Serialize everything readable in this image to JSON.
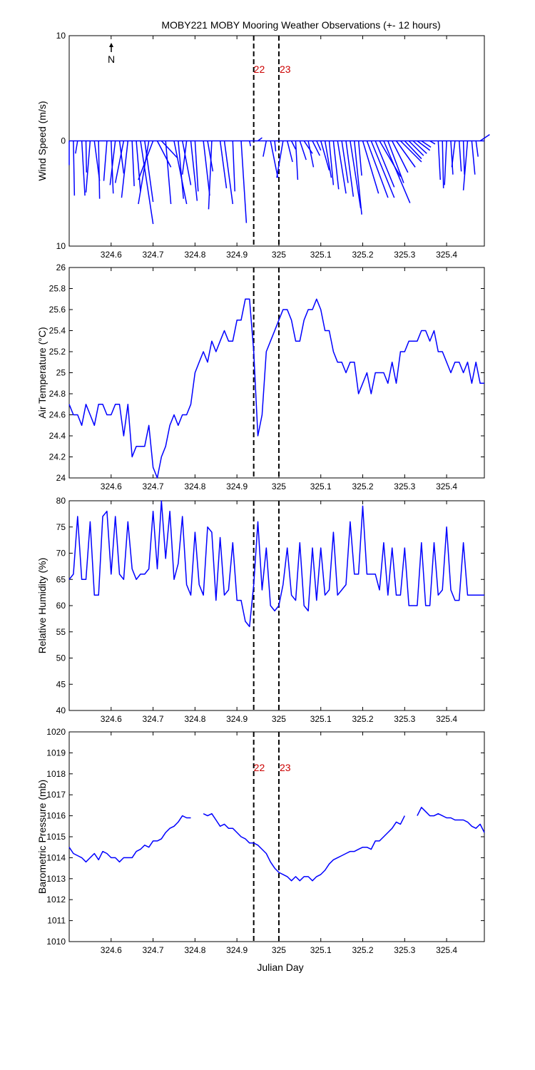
{
  "title": "MOBY221 MOBY Mooring Weather Observations (+- 12 hours)",
  "xlabel": "Julian Day",
  "x_ticks": [
    324.6,
    324.7,
    324.8,
    324.9,
    325,
    325.1,
    325.2,
    325.3,
    325.4
  ],
  "x_tick_labels": [
    "324.6",
    "324.7",
    "324.8",
    "324.9",
    "325",
    "325.1",
    "325.2",
    "325.3",
    "325.4"
  ],
  "xlim": [
    324.5,
    325.49
  ],
  "markers": [
    {
      "x": 324.94,
      "label": "22"
    },
    {
      "x": 325.0,
      "label": "23"
    }
  ],
  "colors": {
    "series": "#0000ff",
    "marker_label": "#cc0000",
    "axis": "#000000"
  },
  "north_label": "N",
  "chart_data": [
    {
      "type": "quiver",
      "ylabel": "Wind Speed (m/s)",
      "ylim": [
        -10,
        10
      ],
      "y_ticks": [
        10,
        0,
        -10
      ],
      "y_tick_labels": [
        "10",
        "0",
        "10"
      ],
      "show_x_ticks": true,
      "marker_labels_at": 6.8,
      "vectors": [
        [
          324.5,
          0,
          -2.3
        ],
        [
          324.51,
          0.1,
          -5.2
        ],
        [
          324.52,
          -0.2,
          -1.2
        ],
        [
          324.53,
          0.3,
          -5.2
        ],
        [
          324.54,
          0.05,
          -3.0
        ],
        [
          324.55,
          -0.4,
          -4.9
        ],
        [
          324.56,
          0.5,
          -3.8
        ],
        [
          324.57,
          0.1,
          -5.5
        ],
        [
          324.59,
          -0.3,
          -3.8
        ],
        [
          324.6,
          0.2,
          -5.0
        ],
        [
          324.61,
          -0.5,
          -4.2
        ],
        [
          324.62,
          0.4,
          -3.1
        ],
        [
          324.63,
          -0.8,
          -4.0
        ],
        [
          324.64,
          -0.6,
          -5.4
        ],
        [
          324.65,
          0.2,
          -4.3
        ],
        [
          324.66,
          0.4,
          -4.8
        ],
        [
          324.67,
          1.2,
          -7.9
        ],
        [
          324.68,
          0.8,
          -5.8
        ],
        [
          324.69,
          -1.0,
          -6.0
        ],
        [
          324.7,
          -1.4,
          -3.7
        ],
        [
          324.71,
          1.3,
          -2.5
        ],
        [
          324.72,
          1.5,
          -1.6
        ],
        [
          324.73,
          0.5,
          -6.0
        ],
        [
          324.75,
          1.2,
          -6.0
        ],
        [
          324.76,
          0.5,
          -5.5
        ],
        [
          324.77,
          0.8,
          -4.2
        ],
        [
          324.78,
          -0.4,
          -3.2
        ],
        [
          324.79,
          0.6,
          -5.7
        ],
        [
          324.8,
          0.3,
          -4.8
        ],
        [
          324.82,
          0.6,
          -5.2
        ],
        [
          324.83,
          0.5,
          -2.9
        ],
        [
          324.84,
          -0.3,
          -6.5
        ],
        [
          324.86,
          0.6,
          -4.5
        ],
        [
          324.87,
          0.8,
          -6.0
        ],
        [
          324.89,
          0.2,
          -4.8
        ],
        [
          324.91,
          0.5,
          -7.8
        ],
        [
          324.93,
          0.1,
          -0.5
        ],
        [
          324.95,
          0.4,
          0.3
        ],
        [
          324.97,
          -0.3,
          -1.5
        ],
        [
          324.98,
          0.7,
          -3.5
        ],
        [
          324.99,
          0.1,
          -1.0
        ],
        [
          325.01,
          -0.6,
          -3.5
        ],
        [
          325.02,
          0.5,
          -2.0
        ],
        [
          325.03,
          0.4,
          -0.8
        ],
        [
          325.04,
          0.2,
          -3.7
        ],
        [
          325.05,
          0.6,
          -1.8
        ],
        [
          325.06,
          0.8,
          -1.2
        ],
        [
          325.07,
          0.5,
          -2.5
        ],
        [
          325.08,
          0.7,
          -1.4
        ],
        [
          325.09,
          0.4,
          -0.9
        ],
        [
          325.1,
          0.8,
          -2.8
        ],
        [
          325.11,
          0.6,
          -3.5
        ],
        [
          325.12,
          0.4,
          -4.2
        ],
        [
          325.13,
          0.5,
          -4.6
        ],
        [
          325.14,
          0.8,
          -5.0
        ],
        [
          325.15,
          0.6,
          -4.0
        ],
        [
          325.16,
          0.7,
          -5.3
        ],
        [
          325.17,
          1.0,
          -6.4
        ],
        [
          325.18,
          0.7,
          -7.0
        ],
        [
          325.19,
          0.3,
          -3.3
        ],
        [
          325.2,
          1.5,
          -5.0
        ],
        [
          325.21,
          2.0,
          -5.4
        ],
        [
          325.22,
          2.2,
          -5.4
        ],
        [
          325.23,
          1.8,
          -4.4
        ],
        [
          325.24,
          2.0,
          -3.4
        ],
        [
          325.25,
          2.5,
          -5.9
        ],
        [
          325.26,
          1.5,
          -4.0
        ],
        [
          325.27,
          1.5,
          -3.0
        ],
        [
          325.28,
          1.8,
          -2.5
        ],
        [
          325.29,
          2.0,
          -2.0
        ],
        [
          325.3,
          1.6,
          -1.7
        ],
        [
          325.31,
          1.4,
          -1.4
        ],
        [
          325.32,
          1.3,
          -1.2
        ],
        [
          325.33,
          1.2,
          -0.9
        ],
        [
          325.34,
          0.9,
          -0.6
        ],
        [
          325.36,
          0.5,
          -0.3
        ],
        [
          325.38,
          0.2,
          -3.7
        ],
        [
          325.39,
          0.1,
          -4.5
        ],
        [
          325.4,
          -0.2,
          -4.2
        ],
        [
          325.41,
          0.2,
          -3.2
        ],
        [
          325.42,
          -0.3,
          -2.5
        ],
        [
          325.43,
          0.2,
          -2.9
        ],
        [
          325.44,
          0.1,
          -3.2
        ],
        [
          325.45,
          -0.4,
          -4.7
        ],
        [
          325.46,
          0.3,
          -3.2
        ],
        [
          325.47,
          0.2,
          -1.5
        ],
        [
          325.48,
          0.9,
          0.6
        ]
      ]
    },
    {
      "type": "line",
      "ylabel": "Air Temperature (°C)",
      "ylim": [
        24,
        26
      ],
      "y_ticks": [
        24,
        24.2,
        24.4,
        24.6,
        24.8,
        25,
        25.2,
        25.4,
        25.6,
        25.8,
        26
      ],
      "y_tick_labels": [
        "24",
        "24.2",
        "24.4",
        "24.6",
        "24.8",
        "25",
        "25.2",
        "25.4",
        "25.6",
        "25.8",
        "26"
      ],
      "show_x_ticks": true,
      "x": [
        324.5,
        324.51,
        324.52,
        324.53,
        324.54,
        324.55,
        324.56,
        324.57,
        324.58,
        324.59,
        324.6,
        324.61,
        324.62,
        324.63,
        324.64,
        324.65,
        324.66,
        324.67,
        324.68,
        324.69,
        324.7,
        324.71,
        324.72,
        324.73,
        324.74,
        324.75,
        324.76,
        324.77,
        324.78,
        324.79,
        324.8,
        324.81,
        324.82,
        324.83,
        324.84,
        324.85,
        324.86,
        324.87,
        324.88,
        324.89,
        324.9,
        324.91,
        324.92,
        324.93,
        324.94,
        324.95,
        324.96,
        324.97,
        324.98,
        324.99,
        325.0,
        325.01,
        325.02,
        325.03,
        325.04,
        325.05,
        325.06,
        325.07,
        325.08,
        325.09,
        325.1,
        325.11,
        325.12,
        325.13,
        325.14,
        325.15,
        325.16,
        325.17,
        325.18,
        325.19,
        325.2,
        325.21,
        325.22,
        325.23,
        325.24,
        325.25,
        325.26,
        325.27,
        325.28,
        325.29,
        325.3,
        325.31,
        325.32,
        325.33,
        325.34,
        325.35,
        325.36,
        325.37,
        325.38,
        325.39,
        325.4,
        325.41,
        325.42,
        325.43,
        325.44,
        325.45,
        325.46,
        325.47,
        325.48,
        325.49
      ],
      "y": [
        24.7,
        24.6,
        24.6,
        24.5,
        24.7,
        24.6,
        24.5,
        24.7,
        24.7,
        24.6,
        24.6,
        24.7,
        24.7,
        24.4,
        24.7,
        24.2,
        24.3,
        24.3,
        24.3,
        24.5,
        24.1,
        24.0,
        24.2,
        24.3,
        24.5,
        24.6,
        24.5,
        24.6,
        24.6,
        24.7,
        25.0,
        25.1,
        25.2,
        25.1,
        25.3,
        25.2,
        25.3,
        25.4,
        25.3,
        25.3,
        25.5,
        25.5,
        25.7,
        25.7,
        25.2,
        24.4,
        24.6,
        25.2,
        25.3,
        25.4,
        25.5,
        25.6,
        25.6,
        25.5,
        25.3,
        25.3,
        25.5,
        25.6,
        25.6,
        25.7,
        25.6,
        25.4,
        25.4,
        25.2,
        25.1,
        25.1,
        25.0,
        25.1,
        25.1,
        24.8,
        24.9,
        25.0,
        24.8,
        25.0,
        25.0,
        25.0,
        24.9,
        25.1,
        24.9,
        25.2,
        25.2,
        25.3,
        25.3,
        25.3,
        25.4,
        25.4,
        25.3,
        25.4,
        25.2,
        25.2,
        25.1,
        25.0,
        25.1,
        25.1,
        25.0,
        25.1,
        24.9,
        25.1,
        24.9,
        24.9
      ]
    },
    {
      "type": "line",
      "ylabel": "Relative Humidity (%)",
      "ylim": [
        40,
        80
      ],
      "y_ticks": [
        40,
        45,
        50,
        55,
        60,
        65,
        70,
        75,
        80
      ],
      "y_tick_labels": [
        "40",
        "45",
        "50",
        "55",
        "60",
        "65",
        "70",
        "75",
        "80"
      ],
      "show_x_ticks": true,
      "x": [
        324.5,
        324.51,
        324.52,
        324.53,
        324.54,
        324.55,
        324.56,
        324.57,
        324.58,
        324.59,
        324.6,
        324.61,
        324.62,
        324.63,
        324.64,
        324.65,
        324.66,
        324.67,
        324.68,
        324.69,
        324.7,
        324.71,
        324.72,
        324.73,
        324.74,
        324.75,
        324.76,
        324.77,
        324.78,
        324.79,
        324.8,
        324.81,
        324.82,
        324.83,
        324.84,
        324.85,
        324.86,
        324.87,
        324.88,
        324.89,
        324.9,
        324.91,
        324.92,
        324.93,
        324.94,
        324.95,
        324.96,
        324.97,
        324.98,
        324.99,
        325.0,
        325.01,
        325.02,
        325.03,
        325.04,
        325.05,
        325.06,
        325.07,
        325.08,
        325.09,
        325.1,
        325.11,
        325.12,
        325.13,
        325.14,
        325.15,
        325.16,
        325.17,
        325.18,
        325.19,
        325.2,
        325.21,
        325.22,
        325.23,
        325.24,
        325.25,
        325.26,
        325.27,
        325.28,
        325.29,
        325.3,
        325.31,
        325.32,
        325.33,
        325.34,
        325.35,
        325.36,
        325.37,
        325.38,
        325.39,
        325.4,
        325.41,
        325.42,
        325.43,
        325.44,
        325.45,
        325.46,
        325.47,
        325.48,
        325.49
      ],
      "y": [
        65,
        66,
        77,
        65,
        65,
        76,
        62,
        62,
        77,
        78,
        66,
        77,
        66,
        65,
        76,
        67,
        65,
        66,
        66,
        67,
        78,
        67,
        80,
        69,
        78,
        65,
        68,
        77,
        64,
        62,
        74,
        64,
        62,
        75,
        74,
        61,
        73,
        62,
        63,
        72,
        61,
        61,
        57,
        56,
        64,
        76,
        63,
        71,
        60,
        59,
        60,
        64,
        71,
        62,
        61,
        72,
        60,
        59,
        71,
        61,
        71,
        62,
        63,
        74,
        62,
        63,
        64,
        76,
        66,
        66,
        79,
        66,
        66,
        66,
        63,
        72,
        62,
        71,
        62,
        62,
        71,
        60,
        60,
        60,
        72,
        60,
        60,
        72,
        62,
        63,
        75,
        63,
        61,
        61,
        72,
        62,
        62,
        62,
        62,
        62
      ]
    },
    {
      "type": "line",
      "ylabel": "Barometric Pressure (mb)",
      "ylim": [
        1010,
        1020
      ],
      "y_ticks": [
        1010,
        1011,
        1012,
        1013,
        1014,
        1015,
        1016,
        1017,
        1018,
        1019,
        1020
      ],
      "y_tick_labels": [
        "1010",
        "1011",
        "1012",
        "1013",
        "1014",
        "1015",
        "1016",
        "1017",
        "1018",
        "1019",
        "1020"
      ],
      "show_x_ticks": true,
      "marker_labels_at": 1018.3,
      "x": [
        324.5,
        324.51,
        324.52,
        324.53,
        324.54,
        324.55,
        324.56,
        324.57,
        324.58,
        324.59,
        324.6,
        324.61,
        324.62,
        324.63,
        324.64,
        324.65,
        324.66,
        324.67,
        324.68,
        324.69,
        324.7,
        324.71,
        324.72,
        324.73,
        324.74,
        324.75,
        324.76,
        324.77,
        324.78,
        324.79,
        324.8,
        324.81,
        324.82,
        324.83,
        324.84,
        324.85,
        324.86,
        324.87,
        324.88,
        324.89,
        324.9,
        324.91,
        324.92,
        324.93,
        324.94,
        324.95,
        324.96,
        324.97,
        324.98,
        324.99,
        325.0,
        325.01,
        325.02,
        325.03,
        325.04,
        325.05,
        325.06,
        325.07,
        325.08,
        325.09,
        325.1,
        325.11,
        325.12,
        325.13,
        325.14,
        325.15,
        325.16,
        325.17,
        325.18,
        325.19,
        325.2,
        325.21,
        325.22,
        325.23,
        325.24,
        325.25,
        325.26,
        325.27,
        325.28,
        325.29,
        325.3,
        325.31,
        325.32,
        325.33,
        325.34,
        325.35,
        325.36,
        325.37,
        325.38,
        325.39,
        325.4,
        325.41,
        325.42,
        325.43,
        325.44,
        325.45,
        325.46,
        325.47,
        325.48,
        325.49
      ],
      "y": [
        1014.5,
        1014.2,
        1014.1,
        1014.0,
        1013.8,
        1014.0,
        1014.2,
        1013.9,
        1014.3,
        1014.2,
        1014.0,
        1014.0,
        1013.8,
        1014.0,
        1014.0,
        1014.0,
        1014.3,
        1014.4,
        1014.6,
        1014.5,
        1014.8,
        1014.8,
        1014.9,
        1015.2,
        1015.4,
        1015.5,
        1015.7,
        1016.0,
        1015.9,
        1015.9,
        null,
        null,
        1016.1,
        1016.0,
        1016.1,
        1015.8,
        1015.5,
        1015.6,
        1015.4,
        1015.4,
        1015.2,
        1015.0,
        1014.9,
        1014.7,
        1014.7,
        1014.6,
        1014.4,
        1014.2,
        1013.8,
        1013.5,
        1013.3,
        1013.2,
        1013.1,
        1012.9,
        1013.1,
        1012.9,
        1013.1,
        1013.1,
        1012.9,
        1013.1,
        1013.2,
        1013.4,
        1013.7,
        1013.9,
        1014.0,
        1014.1,
        1014.2,
        1014.3,
        1014.3,
        1014.4,
        1014.5,
        1014.5,
        1014.4,
        1014.8,
        1014.8,
        1015.0,
        1015.2,
        1015.4,
        1015.7,
        1015.6,
        1016.0,
        null,
        null,
        1016.0,
        1016.4,
        1016.2,
        1016.0,
        1016.0,
        1016.1,
        1016.0,
        1015.9,
        1015.9,
        1015.8,
        1015.8,
        1015.8,
        1015.7,
        1015.5,
        1015.4,
        1015.6,
        1015.2
      ]
    }
  ]
}
